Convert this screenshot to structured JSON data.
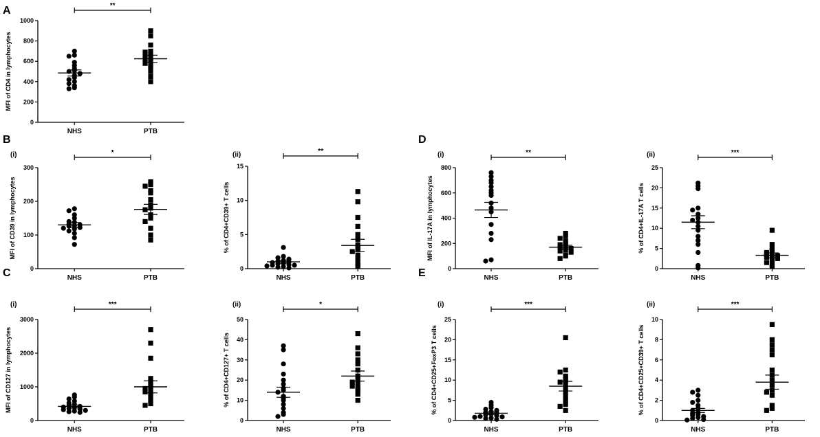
{
  "figure": {
    "labels": [
      {
        "id": "A",
        "text": "A"
      },
      {
        "id": "B",
        "text": "B"
      },
      {
        "id": "C",
        "text": "C"
      },
      {
        "id": "D",
        "text": "D"
      },
      {
        "id": "E",
        "text": "E"
      }
    ]
  },
  "chart_data": [
    {
      "id": "A",
      "type": "scatter",
      "title": "",
      "sublabel": "",
      "ylabel": "MFI of CD4 in lymphocytes",
      "ylim": [
        0,
        1000
      ],
      "yticks": [
        0,
        200,
        400,
        600,
        800,
        1000
      ],
      "categories": [
        "NHS",
        "PTB"
      ],
      "significance": "**",
      "series": [
        {
          "name": "NHS",
          "marker": "circle",
          "values": [
            700,
            660,
            650,
            590,
            560,
            530,
            510,
            500,
            480,
            460,
            440,
            420,
            400,
            380,
            360,
            340,
            330
          ],
          "mean": 485,
          "sem": 30
        },
        {
          "name": "PTB",
          "marker": "square",
          "values": [
            900,
            850,
            760,
            700,
            690,
            670,
            650,
            630,
            620,
            600,
            580,
            560,
            540,
            500,
            450,
            400
          ],
          "mean": 625,
          "sem": 35
        }
      ]
    },
    {
      "id": "B(i)",
      "type": "scatter",
      "sublabel": "(i)",
      "ylabel": "MFI of CD39 in lymphocytes",
      "ylim": [
        0,
        300
      ],
      "yticks": [
        0,
        100,
        200,
        300
      ],
      "categories": [
        "NHS",
        "PTB"
      ],
      "significance": "*",
      "series": [
        {
          "name": "NHS",
          "marker": "circle",
          "values": [
            178,
            172,
            160,
            150,
            140,
            138,
            132,
            130,
            128,
            126,
            122,
            120,
            118,
            112,
            105,
            92,
            72
          ],
          "mean": 130,
          "sem": 7
        },
        {
          "name": "PTB",
          "marker": "square",
          "values": [
            258,
            250,
            245,
            232,
            225,
            205,
            190,
            180,
            175,
            160,
            150,
            140,
            120,
            100,
            85
          ],
          "mean": 176,
          "sem": 15
        }
      ]
    },
    {
      "id": "B(ii)",
      "type": "scatter",
      "sublabel": "(ii)",
      "ylabel": "% of CD4+CD39+ T cells",
      "ylim": [
        0,
        15
      ],
      "yticks": [
        0,
        5,
        10,
        15
      ],
      "categories": [
        "NHS",
        "PTB"
      ],
      "significance": "**",
      "series": [
        {
          "name": "NHS",
          "marker": "circle",
          "values": [
            3.1,
            1.8,
            1.6,
            1.4,
            1.2,
            1.1,
            1.0,
            0.9,
            0.8,
            0.7,
            0.6,
            0.5,
            0.5,
            0.4,
            0.3,
            0.2,
            0.1
          ],
          "mean": 1.0,
          "sem": 0.2
        },
        {
          "name": "PTB",
          "marker": "square",
          "values": [
            11.3,
            9.8,
            7.5,
            6.2,
            5.0,
            4.3,
            3.5,
            3.0,
            2.8,
            2.5,
            2.0,
            1.5,
            1.0,
            0.6,
            0.3
          ],
          "mean": 3.4,
          "sem": 0.9
        }
      ]
    },
    {
      "id": "C(i)",
      "type": "scatter",
      "sublabel": "(i)",
      "ylabel": "MFI of CD127 in lymphocytes",
      "ylim": [
        0,
        3000
      ],
      "yticks": [
        0,
        1000,
        2000,
        3000
      ],
      "categories": [
        "NHS",
        "PTB"
      ],
      "significance": "***",
      "series": [
        {
          "name": "NHS",
          "marker": "circle",
          "values": [
            760,
            700,
            640,
            580,
            520,
            480,
            450,
            420,
            400,
            380,
            360,
            340,
            320,
            300,
            280,
            260,
            240
          ],
          "mean": 420,
          "sem": 40
        },
        {
          "name": "PTB",
          "marker": "square",
          "values": [
            2700,
            2300,
            1850,
            1250,
            1150,
            1050,
            1000,
            950,
            900,
            850,
            800,
            700,
            600,
            500,
            450
          ],
          "mean": 1000,
          "sem": 180
        }
      ]
    },
    {
      "id": "C(ii)",
      "type": "scatter",
      "sublabel": "(ii)",
      "ylabel": "% of CD4+CD127+ T cells",
      "ylim": [
        0,
        50
      ],
      "yticks": [
        0,
        10,
        20,
        30,
        40,
        50
      ],
      "categories": [
        "NHS",
        "PTB"
      ],
      "significance": "*",
      "series": [
        {
          "name": "NHS",
          "marker": "circle",
          "values": [
            37,
            35,
            28,
            23,
            20,
            18,
            16,
            15,
            14,
            12,
            11,
            10,
            8,
            6,
            4,
            3,
            2
          ],
          "mean": 14,
          "sem": 2.5
        },
        {
          "name": "PTB",
          "marker": "square",
          "values": [
            43,
            36,
            33,
            30,
            28,
            25,
            22,
            20,
            19,
            18,
            17,
            16,
            15,
            13,
            10
          ],
          "mean": 22,
          "sem": 2.5
        }
      ]
    },
    {
      "id": "D(i)",
      "type": "scatter",
      "sublabel": "(i)",
      "ylabel": "MFI of IL-17A in lymphocytes",
      "ylim": [
        0,
        800
      ],
      "yticks": [
        0,
        200,
        400,
        600,
        800
      ],
      "categories": [
        "NHS",
        "PTB"
      ],
      "significance": "**",
      "series": [
        {
          "name": "NHS",
          "marker": "circle",
          "values": [
            760,
            730,
            700,
            680,
            650,
            620,
            600,
            580,
            520,
            480,
            450,
            350,
            280,
            230,
            70,
            60
          ],
          "mean": 465,
          "sem": 60
        },
        {
          "name": "PTB",
          "marker": "square",
          "values": [
            280,
            260,
            240,
            220,
            200,
            190,
            180,
            170,
            160,
            150,
            140,
            130,
            110,
            100,
            80
          ],
          "mean": 170,
          "sem": 15
        }
      ]
    },
    {
      "id": "D(ii)",
      "type": "scatter",
      "sublabel": "(ii)",
      "ylabel": "% of CD4+IL-17A T cells",
      "ylim": [
        0,
        25
      ],
      "yticks": [
        0,
        5,
        10,
        15,
        20,
        25
      ],
      "categories": [
        "NHS",
        "PTB"
      ],
      "significance": "***",
      "series": [
        {
          "name": "NHS",
          "marker": "circle",
          "values": [
            21.2,
            20.5,
            19.8,
            15,
            14.5,
            13.5,
            12.5,
            12,
            11.5,
            10.5,
            9.5,
            8,
            7,
            6,
            4,
            0.8,
            0.2
          ],
          "mean": 11.5,
          "sem": 1.6
        },
        {
          "name": "PTB",
          "marker": "square",
          "values": [
            9.5,
            6,
            5,
            4.5,
            4,
            3.8,
            3.5,
            3.2,
            3,
            2.8,
            2.5,
            2.2,
            1.5,
            1,
            0.5
          ],
          "mean": 3.3,
          "sem": 0.6
        }
      ]
    },
    {
      "id": "E(i)",
      "type": "scatter",
      "sublabel": "(i)",
      "ylabel": "% of CD4+CD25+FoxP3 T cells",
      "ylim": [
        0,
        25
      ],
      "yticks": [
        0,
        5,
        10,
        15,
        20,
        25
      ],
      "categories": [
        "NHS",
        "PTB"
      ],
      "significance": "***",
      "series": [
        {
          "name": "NHS",
          "marker": "circle",
          "values": [
            4.5,
            3.8,
            3.2,
            2.8,
            2.5,
            2.2,
            2,
            1.8,
            1.6,
            1.4,
            1.2,
            1,
            0.9,
            0.8,
            0.6,
            0.5,
            0.3
          ],
          "mean": 1.8,
          "sem": 0.3
        },
        {
          "name": "PTB",
          "marker": "square",
          "values": [
            20.5,
            12.5,
            12,
            11,
            10.5,
            10,
            9.5,
            9,
            8,
            7,
            6,
            5,
            4,
            3.5,
            2.5
          ],
          "mean": 8.5,
          "sem": 1.2
        }
      ]
    },
    {
      "id": "E(ii)",
      "type": "scatter",
      "sublabel": "(ii)",
      "ylabel": "% of CD4+CD25+CD39+ T cells",
      "ylim": [
        0,
        10
      ],
      "yticks": [
        0,
        2,
        4,
        6,
        8,
        10
      ],
      "categories": [
        "NHS",
        "PTB"
      ],
      "significance": "***",
      "series": [
        {
          "name": "NHS",
          "marker": "circle",
          "values": [
            3,
            2.8,
            2.5,
            2,
            1.8,
            1.5,
            1.2,
            1,
            0.8,
            0.7,
            0.6,
            0.5,
            0.4,
            0.3,
            0.2,
            0.1,
            0.05
          ],
          "mean": 1.0,
          "sem": 0.2
        },
        {
          "name": "PTB",
          "marker": "square",
          "values": [
            9.5,
            8,
            7.5,
            7,
            6.5,
            5,
            4.5,
            4,
            3.5,
            3,
            2.8,
            2.5,
            1.5,
            1.2,
            1
          ],
          "mean": 3.8,
          "sem": 0.7
        }
      ]
    }
  ]
}
